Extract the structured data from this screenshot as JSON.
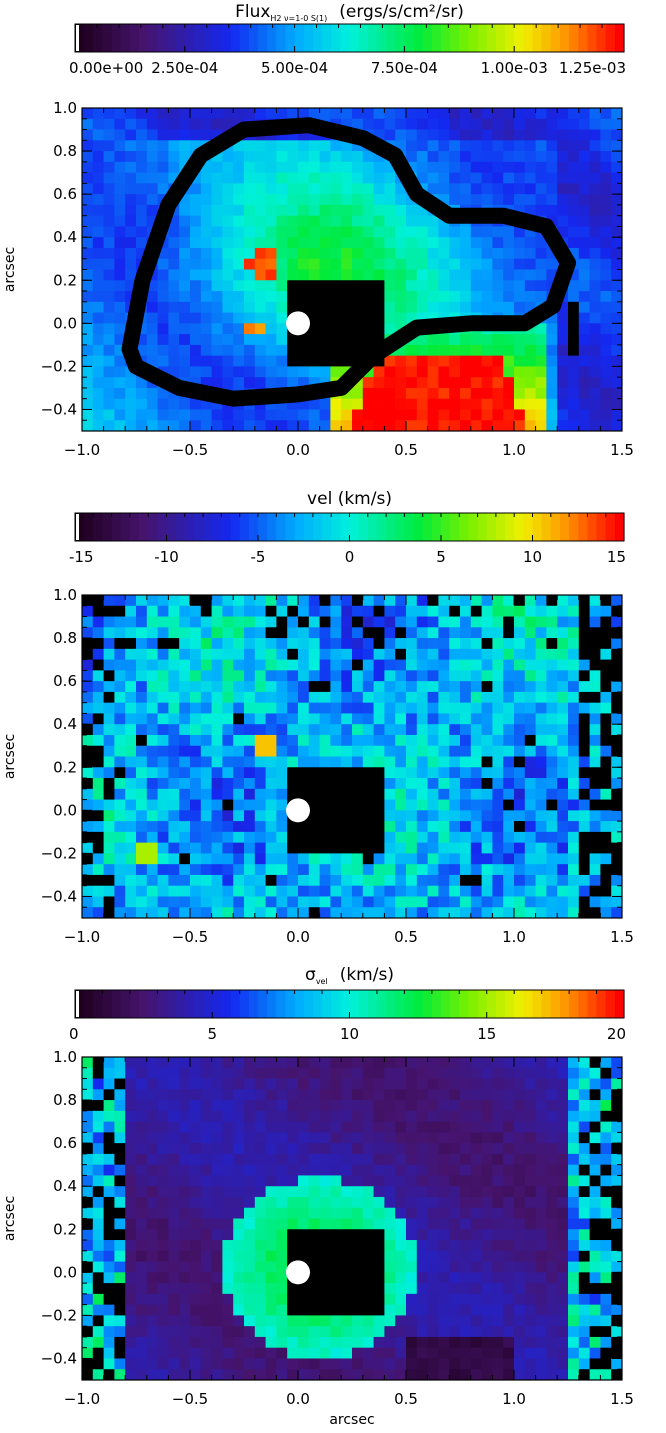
{
  "chart_data": [
    {
      "type": "heatmap",
      "colorbar": {
        "title_main": "Flux",
        "title_sub": "H2 ν=1-0 S(1)",
        "title_units": "(ergs/s/cm²/sr)",
        "ticks": [
          "0.00e+00",
          "2.50e-04",
          "5.00e-04",
          "7.50e-04",
          "1.00e-03",
          "1.25e-03"
        ],
        "range": [
          0,
          0.00125
        ]
      },
      "xlim": [
        -1.0,
        1.5
      ],
      "ylim": [
        -0.5,
        1.0
      ],
      "xticks": [
        "-1.0",
        "-0.5",
        "0.0",
        "0.5",
        "1.0",
        "1.5"
      ],
      "yticks": [
        "-0.4",
        "-0.2",
        "0.0",
        "0.2",
        "0.4",
        "0.6",
        "0.8",
        "1.0"
      ],
      "ylabel": "arcsec",
      "xlabel": "",
      "annotations": [
        "black contour outlining the emission region",
        "white circle marks central source at (0,0)"
      ]
    },
    {
      "type": "heatmap",
      "colorbar": {
        "title": "vel (km/s)",
        "ticks": [
          "-15",
          "-10",
          "-5",
          "0",
          "5",
          "10",
          "15"
        ],
        "range": [
          -15,
          15
        ]
      },
      "xlim": [
        -1.0,
        1.5
      ],
      "ylim": [
        -0.5,
        1.0
      ],
      "xticks": [
        "-1.0",
        "-0.5",
        "0.0",
        "0.5",
        "1.0",
        "1.5"
      ],
      "yticks": [
        "-0.4",
        "-0.2",
        "0.0",
        "0.2",
        "0.4",
        "0.6",
        "0.8",
        "1.0"
      ],
      "ylabel": "arcsec",
      "xlabel": ""
    },
    {
      "type": "heatmap",
      "colorbar": {
        "title_main": "σ",
        "title_sub": "vel",
        "title_units": "(km/s)",
        "ticks": [
          "0",
          "5",
          "10",
          "15",
          "20"
        ],
        "range": [
          0,
          20
        ]
      },
      "xlim": [
        -1.0,
        1.5
      ],
      "ylim": [
        -0.5,
        1.0
      ],
      "xticks": [
        "-1.0",
        "-0.5",
        "0.0",
        "0.5",
        "1.0",
        "1.5"
      ],
      "yticks": [
        "-0.4",
        "-0.2",
        "0.0",
        "0.2",
        "0.4",
        "0.6",
        "0.8",
        "1.0"
      ],
      "ylabel": "arcsec",
      "xlabel": "arcsec"
    }
  ]
}
